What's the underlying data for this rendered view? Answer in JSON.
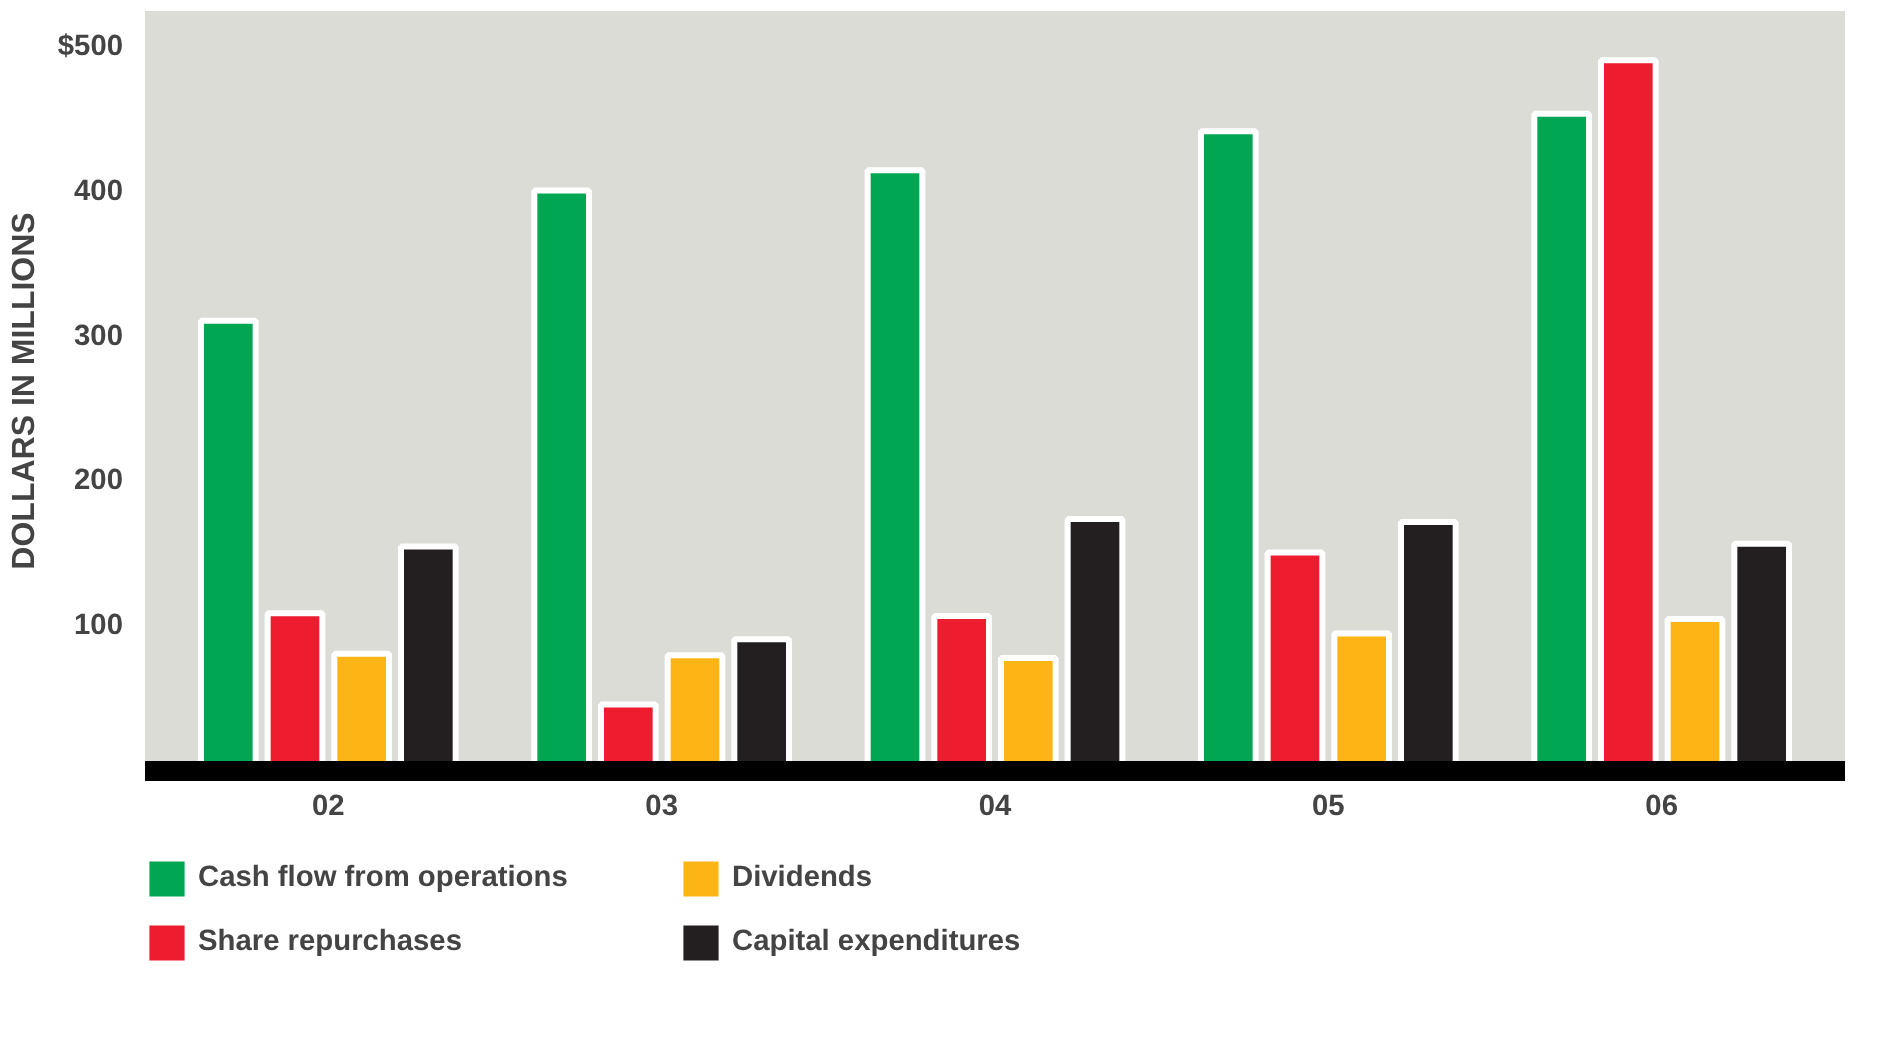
{
  "chart_data": {
    "type": "bar",
    "ylabel": "DOLLARS IN MILLIONS",
    "categories": [
      "02",
      "03",
      "04",
      "05",
      "06"
    ],
    "series": [
      {
        "name": "Cash flow from operations",
        "color": "#00a651",
        "values": [
          311,
          401,
          415,
          442,
          454
        ]
      },
      {
        "name": "Share repurchases",
        "color": "#ed1c2e",
        "values": [
          109,
          46,
          107,
          151,
          491
        ]
      },
      {
        "name": "Dividends",
        "color": "#fdb515",
        "values": [
          81,
          80,
          78,
          95,
          105
        ]
      },
      {
        "name": "Capital expenditures",
        "color": "#231f20",
        "values": [
          155,
          91,
          174,
          172,
          157
        ]
      }
    ],
    "ylim": [
      0,
      525
    ],
    "yticks": [
      100,
      200,
      300,
      400,
      {
        "value": 500,
        "label": "$500"
      }
    ],
    "grid": false,
    "legend": "bottom"
  }
}
